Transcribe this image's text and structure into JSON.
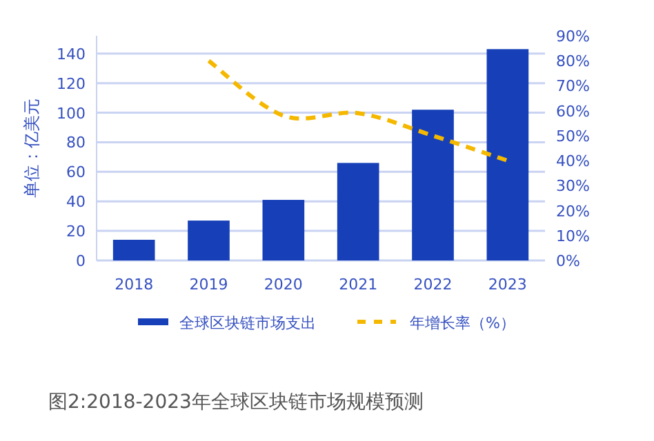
{
  "chart_data": {
    "type": "bar",
    "ylabel": "单位：亿美元",
    "categories": [
      "2018",
      "2019",
      "2020",
      "2021",
      "2022",
      "2023"
    ],
    "series": [
      {
        "name": "全球区块链市场支出",
        "color": "#1740b8",
        "values": [
          14,
          27,
          41,
          66,
          102,
          143
        ]
      },
      {
        "name": "年增长率（%）",
        "type": "line",
        "axis": "y2",
        "color": "#f5b800",
        "line_style": "dashed",
        "marker": "none",
        "values": [
          null,
          80,
          58,
          59,
          50,
          40
        ]
      }
    ],
    "ylim": [
      0,
      152
    ],
    "yticks": [
      0,
      20,
      40,
      60,
      80,
      100,
      120,
      140
    ],
    "y2lim": [
      0,
      90
    ],
    "y2ticks": [
      {
        "value": 0,
        "label": "0%"
      },
      {
        "value": 10,
        "label": "10%"
      },
      {
        "value": 20,
        "label": "20%"
      },
      {
        "value": 30,
        "label": "30%"
      },
      {
        "value": 40,
        "label": "40%"
      },
      {
        "value": 50,
        "label": "50%"
      },
      {
        "value": 60,
        "label": "60%"
      },
      {
        "value": 70,
        "label": "70%"
      },
      {
        "value": 80,
        "label": "80%"
      },
      {
        "value": 90,
        "label": "90%"
      }
    ],
    "grid": "y",
    "legend": "bottom",
    "annotations": [
      "图2:2018-2023年全球区块链市场规模预测"
    ]
  }
}
